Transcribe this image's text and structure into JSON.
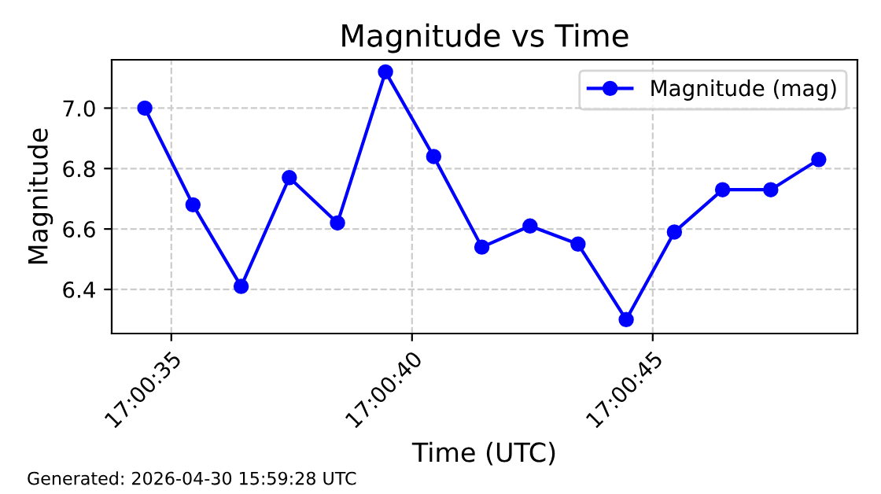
{
  "chart_data": {
    "type": "line",
    "title": "Magnitude vs Time",
    "xlabel": "Time (UTC)",
    "ylabel": "Magnitude",
    "annotations": [
      "Generated: 2026-04-30 15:59:28 UTC"
    ],
    "x": [
      17.009569,
      17.009847,
      17.010125,
      17.010403,
      17.010681,
      17.010958,
      17.011236,
      17.011514,
      17.011792,
      17.012069,
      17.012347,
      17.012625,
      17.012903,
      17.013181,
      17.013458
    ],
    "series": [
      {
        "name": "Magnitude (mag)",
        "color": "#0000ff",
        "values": [
          7.0,
          6.68,
          6.41,
          6.77,
          6.62,
          7.12,
          6.84,
          6.54,
          6.61,
          6.55,
          6.3,
          6.59,
          6.73,
          6.73,
          6.83
        ]
      }
    ],
    "xlim": [
      17.009378,
      17.013681
    ],
    "xticks": [
      {
        "value": 17.009722,
        "label": "17:00:35"
      },
      {
        "value": 17.011111,
        "label": "17:00:40"
      },
      {
        "value": 17.0125,
        "label": "17:00:45"
      }
    ],
    "ylim": [
      6.254,
      7.16
    ],
    "yticks": [
      6.4,
      6.6,
      6.8,
      {
        "value": 7.0,
        "label": "7.0"
      }
    ],
    "grid": true,
    "legend": "top right",
    "marker": "circle",
    "line_style": "solid"
  }
}
